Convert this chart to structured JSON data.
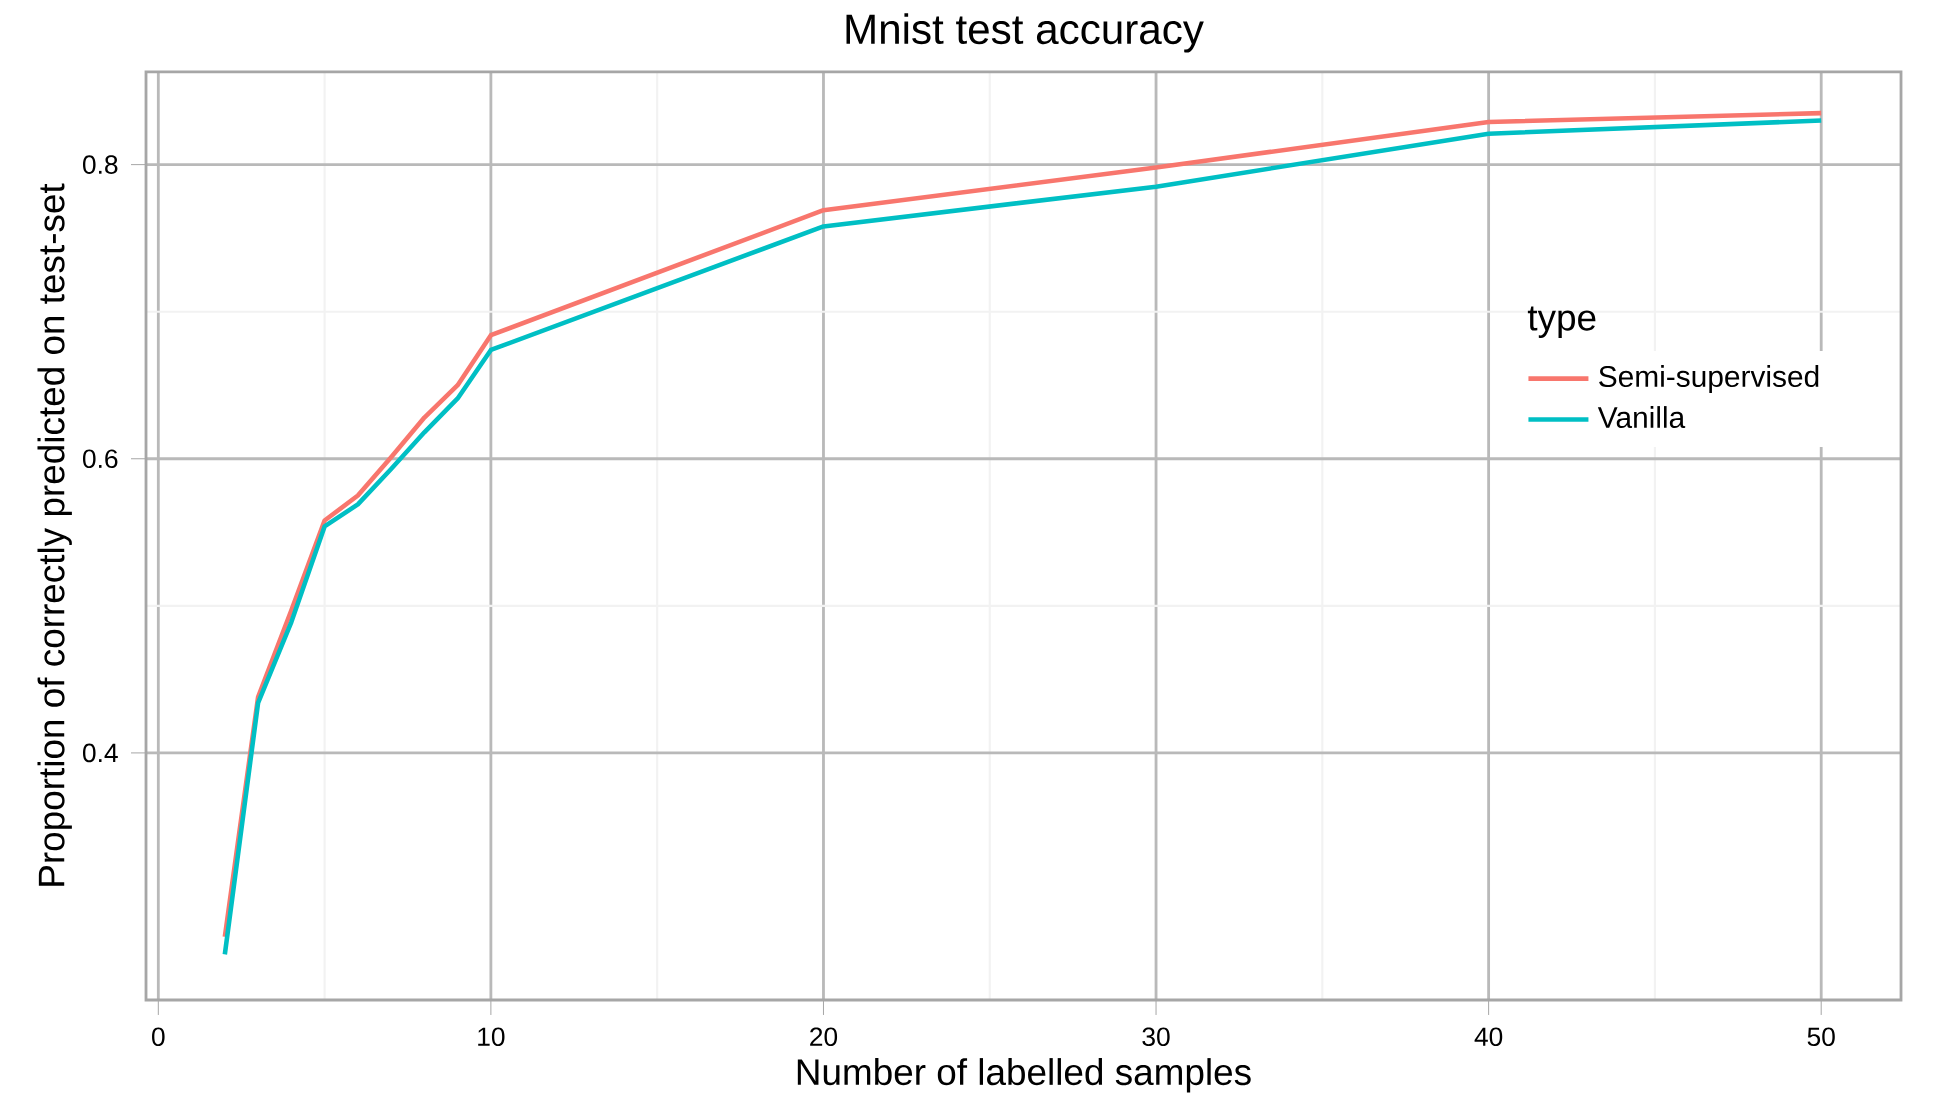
{
  "chart_data": {
    "type": "line",
    "title": "Mnist test accuracy",
    "xlabel": "Number of labelled samples",
    "ylabel": "Proportion of correctly predicted on test-set",
    "legend_title": "type",
    "x": [
      2,
      3,
      4,
      5,
      6,
      7,
      8,
      9,
      10,
      20,
      30,
      40,
      50
    ],
    "series": [
      {
        "name": "Semi-supervised",
        "color": "#f8766d",
        "values": [
          0.275,
          0.438,
          0.497,
          0.558,
          0.575,
          0.601,
          0.628,
          0.65,
          0.684,
          0.769,
          0.798,
          0.829,
          0.835
        ]
      },
      {
        "name": "Vanilla",
        "color": "#00bfc4",
        "values": [
          0.263,
          0.434,
          0.489,
          0.554,
          0.569,
          0.593,
          0.618,
          0.641,
          0.674,
          0.758,
          0.785,
          0.821,
          0.83
        ]
      }
    ],
    "xlim": [
      -0.37,
      52.4
    ],
    "ylim": [
      0.232,
      0.863
    ],
    "xticks": [
      0,
      10,
      20,
      30,
      40,
      50
    ],
    "yticks": [
      0.4,
      0.6,
      0.8
    ],
    "grid": true,
    "legend": "right",
    "marker": "none",
    "line_style": "solid"
  }
}
